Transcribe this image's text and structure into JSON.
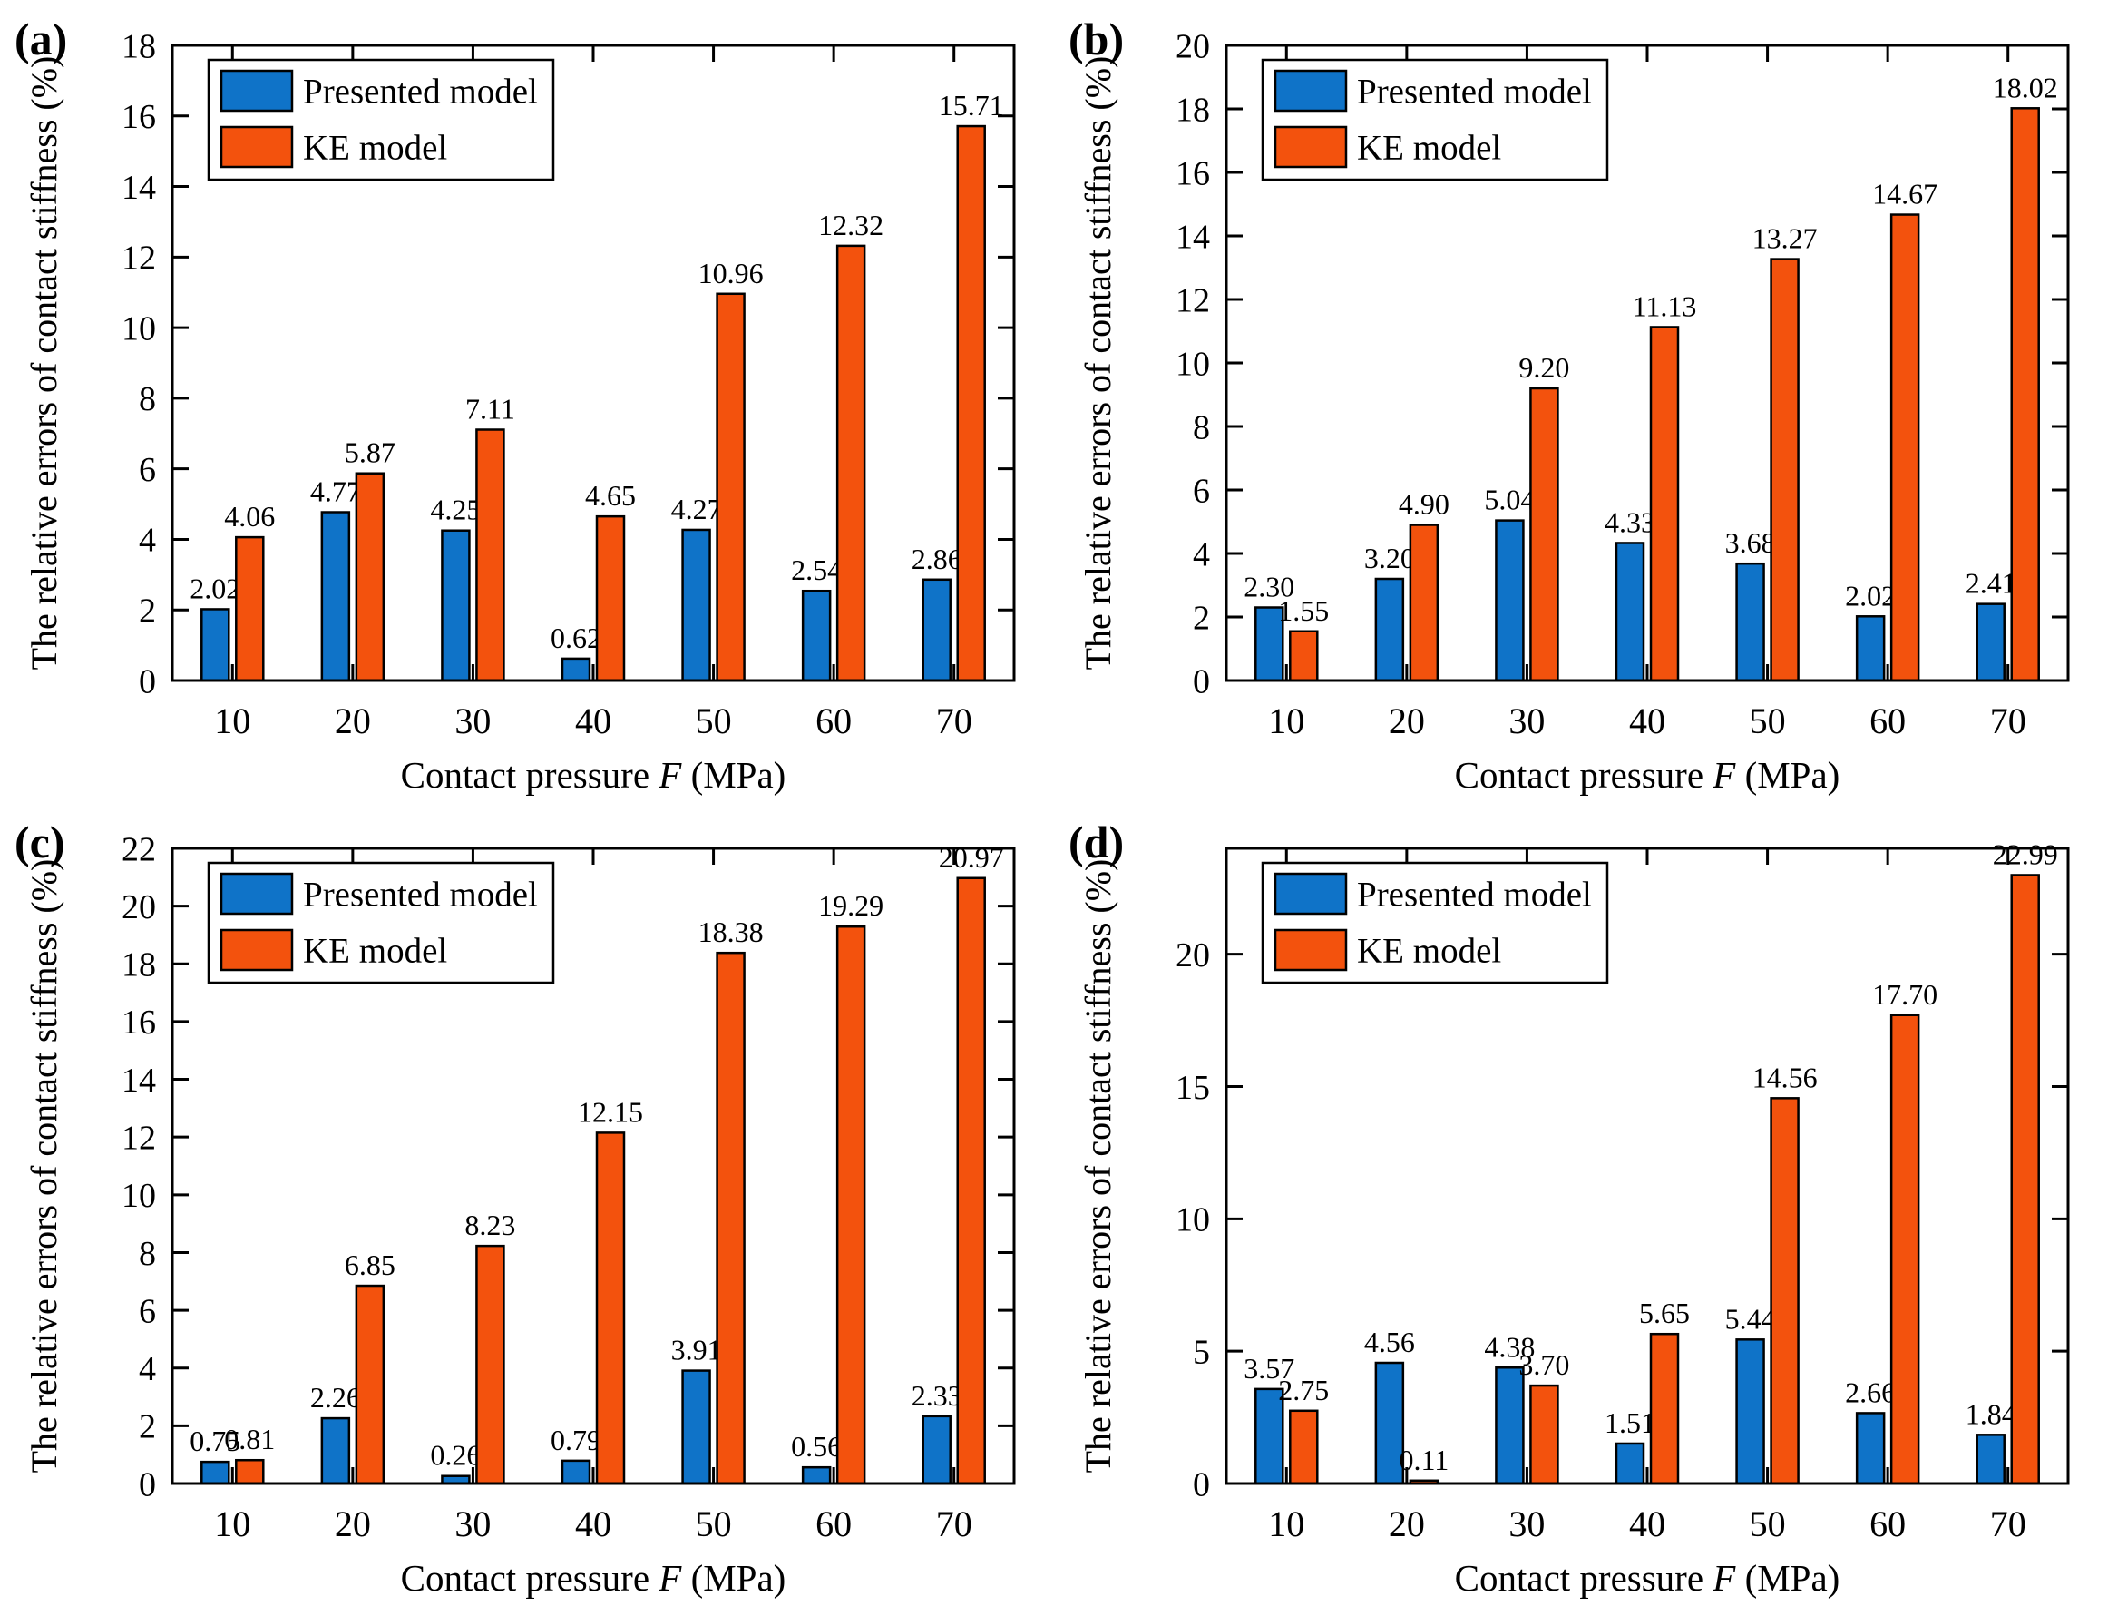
{
  "figure": {
    "panels": [
      {
        "tag": "(a)"
      },
      {
        "tag": "(b)"
      },
      {
        "tag": "(c)"
      },
      {
        "tag": "(d)"
      }
    ]
  },
  "colors": {
    "presented_model": "#0f73c8",
    "ke_model": "#f3520d",
    "axis": "#000000",
    "background": "#ffffff"
  },
  "chart_data": [
    {
      "type": "bar",
      "panel": "a",
      "title": "",
      "categories": [
        "10",
        "20",
        "30",
        "40",
        "50",
        "60",
        "70"
      ],
      "series": [
        {
          "name": "Presented model",
          "color": "#0f73c8",
          "values": [
            2.02,
            4.77,
            4.25,
            0.62,
            4.27,
            2.54,
            2.86
          ]
        },
        {
          "name": "KE model",
          "color": "#f3520d",
          "values": [
            4.06,
            5.87,
            7.11,
            4.65,
            10.96,
            12.32,
            15.71
          ]
        }
      ],
      "xlabel_pre": "Contact pressure ",
      "xlabel_var": "F",
      "xlabel_post": " (MPa)",
      "ylabel": "The relative errors of contact stiffness (%)",
      "ylim": [
        0,
        18
      ],
      "yticks": [
        0,
        2,
        4,
        6,
        8,
        10,
        12,
        14,
        16,
        18
      ],
      "grid": false,
      "legend_position": "upper-left",
      "value_label_decimals": 2
    },
    {
      "type": "bar",
      "panel": "b",
      "title": "",
      "categories": [
        "10",
        "20",
        "30",
        "40",
        "50",
        "60",
        "70"
      ],
      "series": [
        {
          "name": "Presented model",
          "color": "#0f73c8",
          "values": [
            2.3,
            3.2,
            5.04,
            4.33,
            3.68,
            2.02,
            2.41
          ]
        },
        {
          "name": "KE model",
          "color": "#f3520d",
          "values": [
            1.55,
            4.9,
            9.2,
            11.13,
            13.27,
            14.67,
            18.02
          ]
        }
      ],
      "xlabel_pre": "Contact pressure ",
      "xlabel_var": "F",
      "xlabel_post": " (MPa)",
      "ylabel": "The relative errors of contact stiffness (%)",
      "ylim": [
        0,
        20
      ],
      "yticks": [
        0,
        2,
        4,
        6,
        8,
        10,
        12,
        14,
        16,
        18,
        20
      ],
      "grid": false,
      "legend_position": "upper-left",
      "value_label_decimals": 2
    },
    {
      "type": "bar",
      "panel": "c",
      "title": "",
      "categories": [
        "10",
        "20",
        "30",
        "40",
        "50",
        "60",
        "70"
      ],
      "series": [
        {
          "name": "Presented model",
          "color": "#0f73c8",
          "values": [
            0.75,
            2.26,
            0.26,
            0.79,
            3.91,
            0.56,
            2.33
          ]
        },
        {
          "name": "KE model",
          "color": "#f3520d",
          "values": [
            0.81,
            6.85,
            8.23,
            12.15,
            18.38,
            19.29,
            20.97
          ]
        }
      ],
      "xlabel_pre": "Contact pressure ",
      "xlabel_var": "F",
      "xlabel_post": " (MPa)",
      "ylabel": "The relative errors of contact stiffness (%)",
      "ylim": [
        0,
        22
      ],
      "yticks": [
        0,
        2,
        4,
        6,
        8,
        10,
        12,
        14,
        16,
        18,
        20,
        22
      ],
      "grid": false,
      "legend_position": "upper-left",
      "value_label_decimals": 2
    },
    {
      "type": "bar",
      "panel": "d",
      "title": "",
      "categories": [
        "10",
        "20",
        "30",
        "40",
        "50",
        "60",
        "70"
      ],
      "series": [
        {
          "name": "Presented model",
          "color": "#0f73c8",
          "values": [
            3.57,
            4.56,
            4.38,
            1.51,
            5.44,
            2.66,
            1.84
          ]
        },
        {
          "name": "KE model",
          "color": "#f3520d",
          "values": [
            2.75,
            0.11,
            3.7,
            5.65,
            14.56,
            17.7,
            22.99
          ]
        }
      ],
      "xlabel_pre": "Contact pressure ",
      "xlabel_var": "F",
      "xlabel_post": " (MPa)",
      "ylabel": "The relative errors of contact stiffness (%)",
      "ylim": [
        0,
        24
      ],
      "yticks": [
        0,
        5,
        10,
        15,
        20
      ],
      "grid": false,
      "legend_position": "upper-left",
      "value_label_decimals": 2
    }
  ]
}
